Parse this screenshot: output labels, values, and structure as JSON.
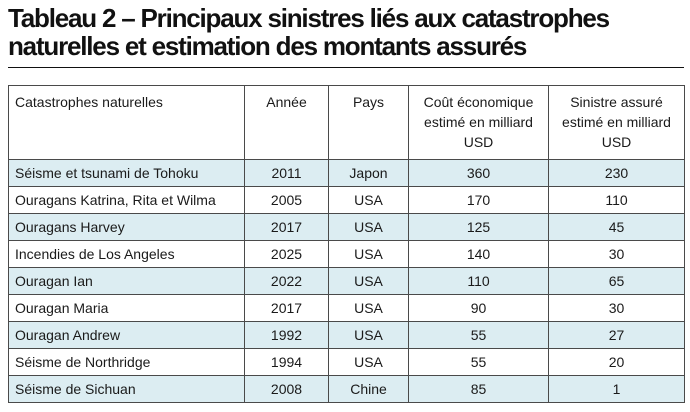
{
  "title": "Tableau 2 – Principaux sinistres liés aux catastrophes naturelles et estimation des montants assurés",
  "columns": {
    "name": "Catastrophes naturelles",
    "year": "Année",
    "country": "Pays",
    "economic_cost": "Coût économique estimé en milliard USD",
    "insured_loss": "Sinistre assuré estimé en milliard USD"
  },
  "rows": [
    {
      "name": "Séisme et tsunami de Tohoku",
      "year": "2011",
      "country": "Japon",
      "economic_cost": "360",
      "insured_loss": "230"
    },
    {
      "name": "Ouragans Katrina, Rita et Wilma",
      "year": "2005",
      "country": "USA",
      "economic_cost": "170",
      "insured_loss": "110"
    },
    {
      "name": "Ouragans Harvey",
      "year": "2017",
      "country": "USA",
      "economic_cost": "125",
      "insured_loss": "45"
    },
    {
      "name": "Incendies de Los Angeles",
      "year": "2025",
      "country": "USA",
      "economic_cost": "140",
      "insured_loss": "30"
    },
    {
      "name": "Ouragan Ian",
      "year": "2022",
      "country": "USA",
      "economic_cost": "110",
      "insured_loss": "65"
    },
    {
      "name": "Ouragan Maria",
      "year": "2017",
      "country": "USA",
      "economic_cost": "90",
      "insured_loss": "30"
    },
    {
      "name": "Ouragan Andrew",
      "year": "1992",
      "country": "USA",
      "economic_cost": "55",
      "insured_loss": "27"
    },
    {
      "name": "Séisme de Northridge",
      "year": "1994",
      "country": "USA",
      "economic_cost": "55",
      "insured_loss": "20"
    },
    {
      "name": "Séisme de Sichuan",
      "year": "2008",
      "country": "Chine",
      "economic_cost": "85",
      "insured_loss": "1"
    }
  ]
}
